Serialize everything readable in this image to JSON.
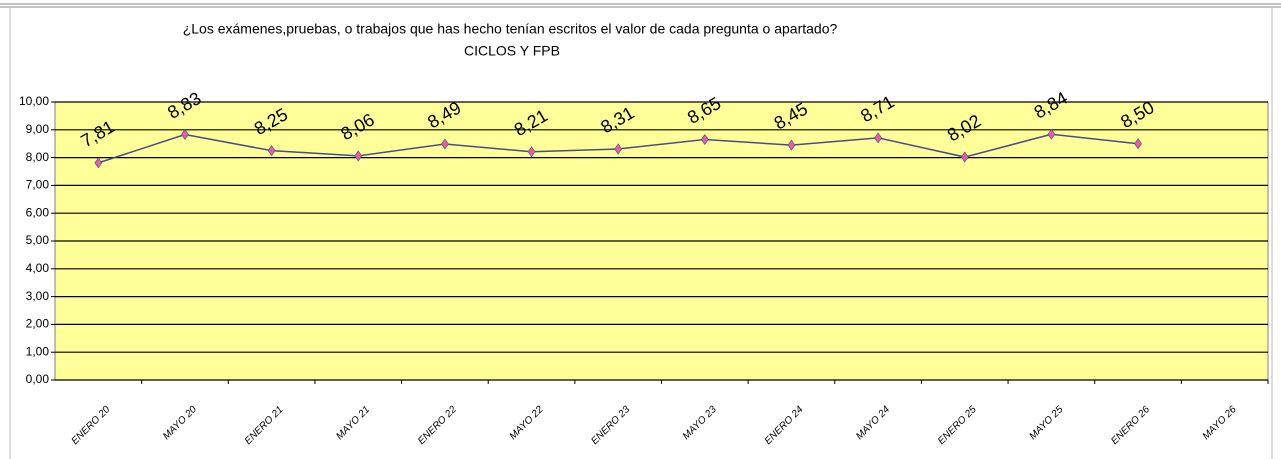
{
  "chart_data": {
    "type": "line",
    "title": "¿Los exámenes,pruebas, o trabajos que has hecho tenían escritos  el valor de cada pregunta o apartado?",
    "subtitle": "CICLOS Y FPB",
    "categories": [
      "ENERO 20",
      "MAYO 20",
      "ENERO 21",
      "MAYO 21",
      "ENERO 22",
      "MAYO 22",
      "ENERO 23",
      "MAYO 23",
      "ENERO 24",
      "MAYO 24",
      "ENERO 25",
      "MAYO 25",
      "ENERO 26",
      "MAYO 26"
    ],
    "values": [
      7.81,
      8.83,
      8.25,
      8.06,
      8.49,
      8.21,
      8.31,
      8.65,
      8.45,
      8.71,
      8.02,
      8.84,
      8.5,
      null
    ],
    "value_labels": [
      "7,81",
      "8,83",
      "8,25",
      "8,06",
      "8,49",
      "8,21",
      "8,31",
      "8,65",
      "8,45",
      "8,71",
      "8,02",
      "8,84",
      "8,50",
      null
    ],
    "color": "#4a4a8c",
    "marker_color": "#e060a0",
    "plot_background": "#ffff99",
    "ylim": [
      0,
      10
    ],
    "yticks": [
      {
        "value": 0,
        "label": "0,00"
      },
      {
        "value": 1,
        "label": "1,00"
      },
      {
        "value": 2,
        "label": "2,00"
      },
      {
        "value": 3,
        "label": "3,00"
      },
      {
        "value": 4,
        "label": "4,00"
      },
      {
        "value": 5,
        "label": "5,00"
      },
      {
        "value": 6,
        "label": "6,00"
      },
      {
        "value": 7,
        "label": "7,00"
      },
      {
        "value": 8,
        "label": "8,00"
      },
      {
        "value": 9,
        "label": "9,00"
      },
      {
        "value": 10,
        "label": "10,00"
      }
    ],
    "grid": true
  }
}
